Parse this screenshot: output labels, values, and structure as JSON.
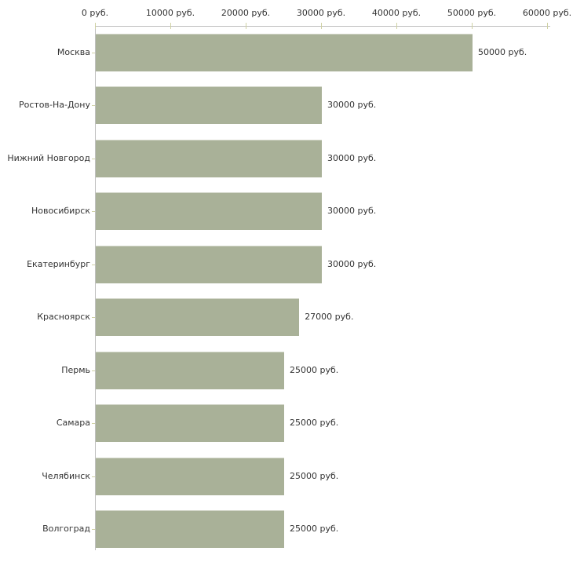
{
  "chart_data": {
    "type": "bar",
    "orientation": "horizontal",
    "title": "",
    "xlabel": "",
    "ylabel": "",
    "unit": "руб.",
    "categories": [
      "Москва",
      "Ростов-На-Дону",
      "Нижний Новгород",
      "Новосибирск",
      "Екатеринбург",
      "Красноярск",
      "Пермь",
      "Самара",
      "Челябинск",
      "Волгоград"
    ],
    "values": [
      50000,
      30000,
      30000,
      30000,
      30000,
      27000,
      25000,
      25000,
      25000,
      25000
    ],
    "value_labels": [
      "50000 руб.",
      "30000 руб.",
      "30000 руб.",
      "30000 руб.",
      "30000 руб.",
      "27000 руб.",
      "25000 руб.",
      "25000 руб.",
      "25000 руб.",
      "25000 руб."
    ],
    "x_ticks": [
      {
        "value": 0,
        "label": "0 руб."
      },
      {
        "value": 10000,
        "label": "10000 руб."
      },
      {
        "value": 20000,
        "label": "20000 руб."
      },
      {
        "value": 30000,
        "label": "30000 руб."
      },
      {
        "value": 40000,
        "label": "40000 руб."
      },
      {
        "value": 50000,
        "label": "50000 руб."
      },
      {
        "value": 60000,
        "label": "60000 руб."
      }
    ],
    "xlim": [
      0,
      60000
    ],
    "grid": false,
    "legend": false,
    "colors": {
      "bar_fill": "#a9b198",
      "axis_line": "#c0c0c0",
      "tick_mark": "#cfd1a3",
      "text": "#333333",
      "background": "#ffffff"
    }
  }
}
